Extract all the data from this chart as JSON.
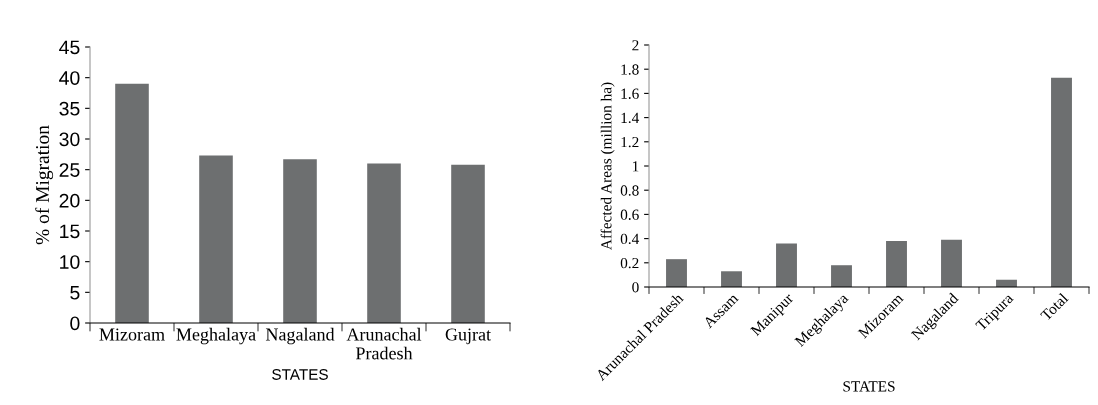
{
  "chart_data": [
    {
      "type": "bar",
      "xlabel": "STATES",
      "ylabel": "% of Migration",
      "categories": [
        "Mizoram",
        "Meghalaya",
        "Nagaland",
        "Arunachal\nPradesh",
        "Gujrat"
      ],
      "values": [
        39,
        27.3,
        26.7,
        26,
        25.8
      ],
      "color": "#6d6f70",
      "ylim": [
        0,
        45
      ],
      "yticks": [
        0,
        5,
        10,
        15,
        20,
        25,
        30,
        35,
        40,
        45
      ],
      "grid": false
    },
    {
      "type": "bar",
      "xlabel": "STATES",
      "ylabel": "Affected Areas (million ha)",
      "categories": [
        "Arunachal Pradesh",
        "Assam",
        "Manipur",
        "Meghalaya",
        "Mizoram",
        "Nagaland",
        "Tripura",
        "Total"
      ],
      "values": [
        0.23,
        0.13,
        0.36,
        0.18,
        0.38,
        0.39,
        0.06,
        1.73
      ],
      "color": "#6d6f70",
      "ylim": [
        0,
        2
      ],
      "yticks": [
        0,
        0.2,
        0.4,
        0.6,
        0.8,
        1,
        1.2,
        1.4,
        1.6,
        1.8,
        2
      ],
      "grid": false
    }
  ]
}
